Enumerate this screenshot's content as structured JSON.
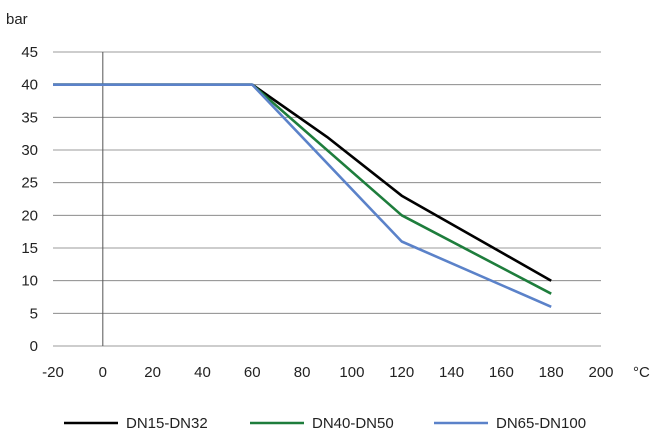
{
  "chart_data": {
    "type": "line",
    "title": "",
    "ylabel": "bar",
    "xlabel": "°C",
    "xlim": [
      -20,
      200
    ],
    "ylim": [
      0,
      45
    ],
    "x_ticks": [
      "-20",
      "0",
      "20",
      "40",
      "60",
      "80",
      "100",
      "120",
      "140",
      "160",
      "180",
      "200"
    ],
    "y_ticks": [
      "0",
      "5",
      "10",
      "15",
      "20",
      "25",
      "30",
      "35",
      "40",
      "45"
    ],
    "grid": "horizontal",
    "legend_position": "bottom",
    "series": [
      {
        "name": "DN15-DN32",
        "color": "#000000",
        "points": [
          [
            -20,
            40
          ],
          [
            60,
            40
          ],
          [
            90,
            32
          ],
          [
            120,
            23
          ],
          [
            180,
            10
          ]
        ]
      },
      {
        "name": "DN40-DN50",
        "color": "#1e7d3c",
        "points": [
          [
            -20,
            40
          ],
          [
            60,
            40
          ],
          [
            120,
            20
          ],
          [
            180,
            8
          ]
        ]
      },
      {
        "name": "DN65-DN100",
        "color": "#5b82c9",
        "points": [
          [
            -20,
            40
          ],
          [
            60,
            40
          ],
          [
            120,
            16
          ],
          [
            180,
            6
          ]
        ]
      }
    ]
  }
}
